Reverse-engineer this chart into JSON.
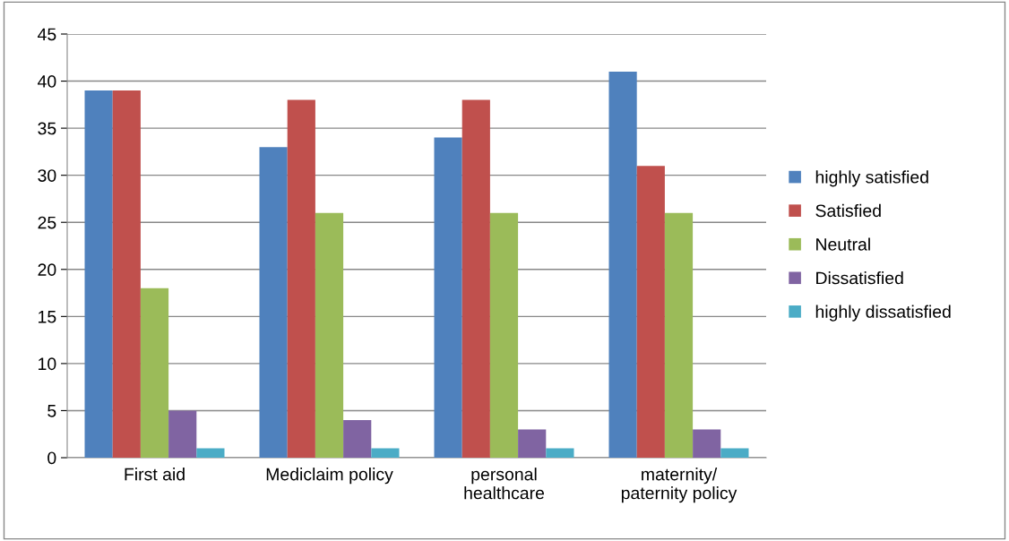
{
  "chart_data": {
    "type": "bar",
    "categories": [
      "First aid",
      "Mediclaim policy",
      "personal\nhealthcare",
      "maternity/\npaternity policy"
    ],
    "series": [
      {
        "name": "highly satisfied",
        "color": "#4f81bd",
        "values": [
          39,
          33,
          34,
          41
        ]
      },
      {
        "name": "Satisfied",
        "color": "#c0504d",
        "values": [
          39,
          38,
          38,
          31
        ]
      },
      {
        "name": "Neutral",
        "color": "#9bbb59",
        "values": [
          18,
          26,
          26,
          26
        ]
      },
      {
        "name": "Dissatisfied",
        "color": "#8064a2",
        "values": [
          5,
          4,
          3,
          3
        ]
      },
      {
        "name": "highly dissatisfied",
        "color": "#4bacc6",
        "values": [
          1,
          1,
          1,
          1
        ]
      }
    ],
    "ylim": [
      0,
      45
    ],
    "yticks": [
      0,
      5,
      10,
      15,
      20,
      25,
      30,
      35,
      40,
      45
    ],
    "grid": "y",
    "legend": "right"
  }
}
